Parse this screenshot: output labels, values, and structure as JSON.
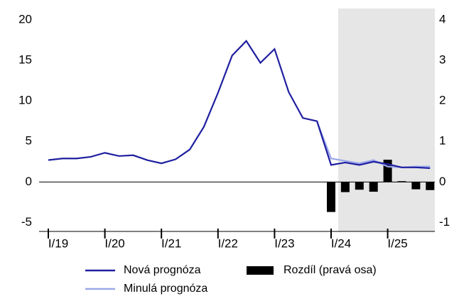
{
  "chart_data": {
    "type": "line",
    "categories": [
      "I/19",
      null,
      null,
      null,
      "I/20",
      null,
      null,
      null,
      "I/21",
      null,
      null,
      null,
      "I/22",
      null,
      null,
      null,
      "I/23",
      null,
      null,
      null,
      "I/24",
      null,
      null,
      null,
      "I/25",
      null,
      null,
      null
    ],
    "series": [
      {
        "name": "Nová prognóza",
        "color": "#1f1fa0",
        "values": [
          2.7,
          2.9,
          2.9,
          3.1,
          3.6,
          3.2,
          3.3,
          2.7,
          2.3,
          2.8,
          4.0,
          6.8,
          11.0,
          15.6,
          17.4,
          14.7,
          16.4,
          11.1,
          7.9,
          7.5,
          2.1,
          2.4,
          2.1,
          2.5,
          2.2,
          1.8,
          1.8,
          1.7
        ]
      },
      {
        "name": "Minulá prognóza",
        "color": "#9aa8ea",
        "values": [
          null,
          null,
          null,
          null,
          null,
          null,
          null,
          null,
          null,
          null,
          null,
          null,
          null,
          null,
          null,
          null,
          null,
          null,
          null,
          7.5,
          2.9,
          2.6,
          2.3,
          2.7,
          1.9,
          1.8,
          1.9,
          1.9
        ]
      },
      {
        "name": "Rozdíl (pravá osa)",
        "color": "#000000",
        "type": "bar",
        "axis": "y2",
        "values": [
          null,
          null,
          null,
          null,
          null,
          null,
          null,
          null,
          null,
          null,
          null,
          null,
          null,
          null,
          null,
          null,
          null,
          null,
          null,
          null,
          -0.74,
          -0.25,
          -0.19,
          -0.24,
          0.55,
          0.02,
          -0.18,
          -0.2
        ]
      }
    ],
    "ylim": [
      -6.1,
      21.4
    ],
    "yticks": [
      -5,
      0,
      5,
      10,
      15,
      20
    ],
    "y2lim": [
      -1.22,
      4.28
    ],
    "y2ticks": [
      -1,
      0,
      1,
      2,
      3,
      4
    ],
    "shade_color": "#e6e6e6"
  }
}
